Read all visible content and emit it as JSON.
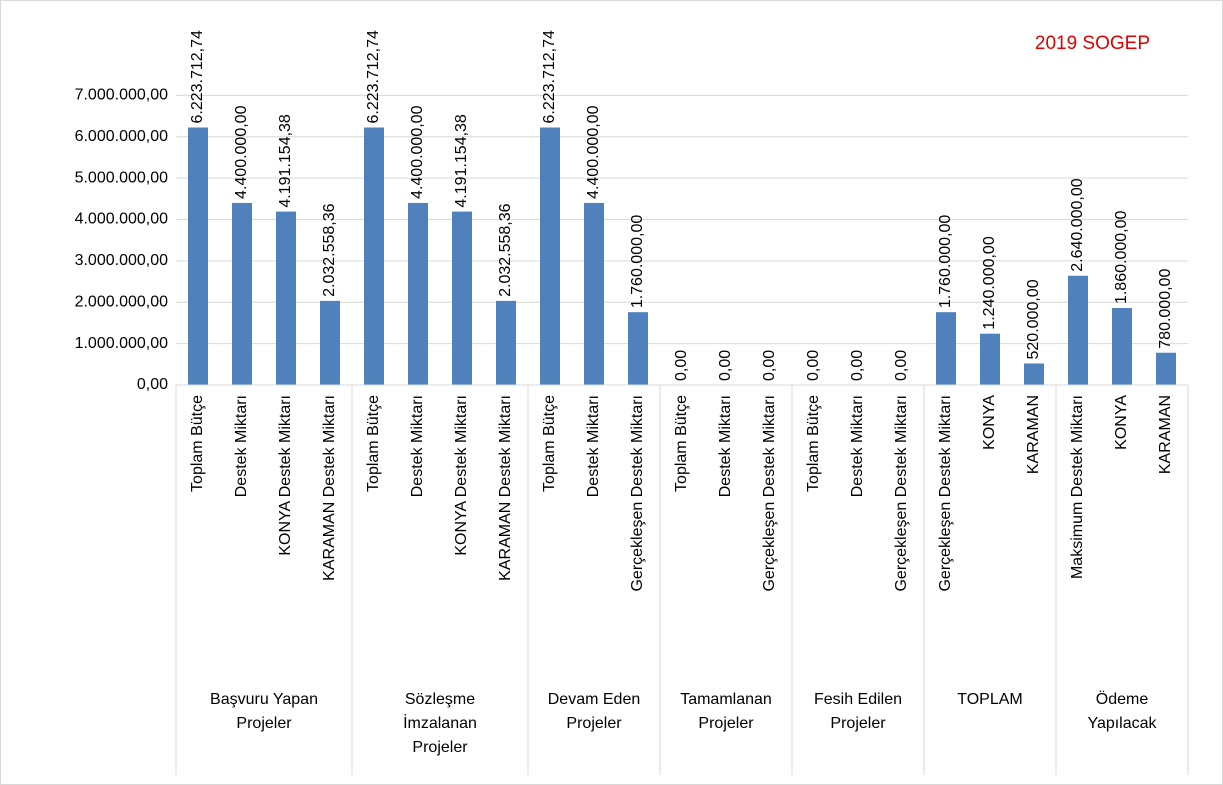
{
  "chart_data": {
    "type": "bar",
    "title": "2019 SOGEP",
    "color": "#4f81bd",
    "ylim": [
      0,
      8000000
    ],
    "yticks": [
      {
        "value": 0,
        "label": "0,00"
      },
      {
        "value": 1000000,
        "label": "1.000.000,00"
      },
      {
        "value": 2000000,
        "label": "2.000.000,00"
      },
      {
        "value": 3000000,
        "label": "3.000.000,00"
      },
      {
        "value": 4000000,
        "label": "4.000.000,00"
      },
      {
        "value": 5000000,
        "label": "5.000.000,00"
      },
      {
        "value": 6000000,
        "label": "6.000.000,00"
      },
      {
        "value": 7000000,
        "label": "7.000.000,00"
      }
    ],
    "grid": true,
    "groups": [
      {
        "label": "Başvuru Yapan Projeler",
        "categories": [
          "Toplam Bütçe",
          "Destek Miktarı",
          "KONYA Destek Miktarı",
          "KARAMAN Destek Miktarı"
        ],
        "values": [
          6223712.74,
          4400000,
          4191154.38,
          2032558.36
        ],
        "value_labels": [
          "6.223.712,74",
          "4.400.000,00",
          "4.191.154,38",
          "2.032.558,36"
        ]
      },
      {
        "label": "Sözleşme İmzalanan Projeler",
        "categories": [
          "Toplam Bütçe",
          "Destek Miktarı",
          "KONYA Destek Miktarı",
          "KARAMAN Destek Miktarı"
        ],
        "values": [
          6223712.74,
          4400000,
          4191154.38,
          2032558.36
        ],
        "value_labels": [
          "6.223.712,74",
          "4.400.000,00",
          "4.191.154,38",
          "2.032.558,36"
        ]
      },
      {
        "label": "Devam Eden Projeler",
        "categories": [
          "Toplam Bütçe",
          "Destek Miktarı",
          "Gerçekleşen Destek Miktarı"
        ],
        "values": [
          6223712.74,
          4400000,
          1760000
        ],
        "value_labels": [
          "6.223.712,74",
          "4.400.000,00",
          "1.760.000,00"
        ]
      },
      {
        "label": "Tamamlanan Projeler",
        "categories": [
          "Toplam Bütçe",
          "Destek Miktarı",
          "Gerçekleşen Destek Miktarı"
        ],
        "values": [
          0,
          0,
          0
        ],
        "value_labels": [
          "0,00",
          "0,00",
          "0,00"
        ]
      },
      {
        "label": "Fesih Edilen Projeler",
        "categories": [
          "Toplam Bütçe",
          "Destek Miktarı",
          "Gerçekleşen Destek Miktarı"
        ],
        "values": [
          0,
          0,
          0
        ],
        "value_labels": [
          "0,00",
          "0,00",
          "0,00"
        ]
      },
      {
        "label": "TOPLAM",
        "categories": [
          "Gerçekleşen Destek Miktarı",
          "KONYA",
          "KARAMAN"
        ],
        "values": [
          1760000,
          1240000,
          520000
        ],
        "value_labels": [
          "1.760.000,00",
          "1.240.000,00",
          "520.000,00"
        ]
      },
      {
        "label": "Ödeme Yapılacak",
        "categories": [
          "Maksimum Destek Miktarı",
          "KONYA",
          "KARAMAN"
        ],
        "values": [
          2640000,
          1860000,
          780000
        ],
        "value_labels": [
          "2.640.000,00",
          "1.860.000,00",
          "780.000,00"
        ]
      }
    ]
  }
}
